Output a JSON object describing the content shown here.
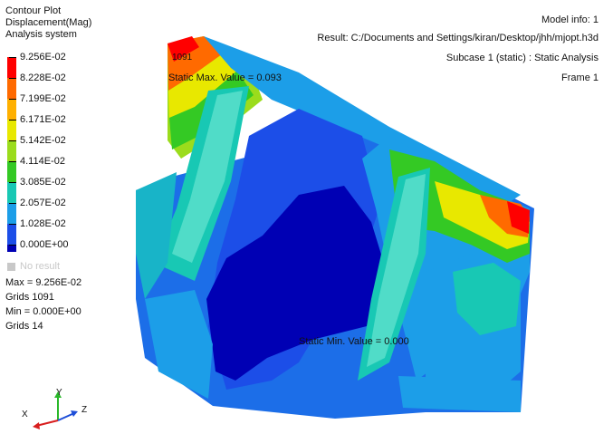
{
  "legend": {
    "title_lines": [
      "Contour Plot",
      "Displacement(Mag)",
      "Analysis system"
    ],
    "ticks": [
      "9.256E-02",
      "8.228E-02",
      "7.199E-02",
      "6.171E-02",
      "5.142E-02",
      "4.114E-02",
      "3.085E-02",
      "2.057E-02",
      "1.028E-02",
      "0.000E+00"
    ],
    "colors": [
      "#ff0000",
      "#ff6a00",
      "#ffb000",
      "#e8e800",
      "#9bdc1c",
      "#34c924",
      "#18c8b4",
      "#1c9ee8",
      "#1c4ee8",
      "#0000b4"
    ],
    "no_result_label": "No result",
    "no_result_color": "#c8c8c8"
  },
  "stats": {
    "max": "Max = 9.256E-02",
    "max_grids": "Grids 1091",
    "min": "Min = 0.000E+00",
    "min_grids": "Grids 14"
  },
  "model_info": {
    "line1": "Model info: 1",
    "line2": "Result: C:/Documents and Settings/kiran/Desktop/jhh/mjopt.h3d",
    "line3": "Subcase 1 (static) : Static Analysis",
    "line4": "Frame 1"
  },
  "annotations": {
    "max_node": "1091",
    "max_value": "Static Max. Value =  0.093",
    "min_value": "Static Min. Value =  0.000"
  },
  "triad": {
    "x": "X",
    "y": "Y",
    "z": "Z"
  }
}
